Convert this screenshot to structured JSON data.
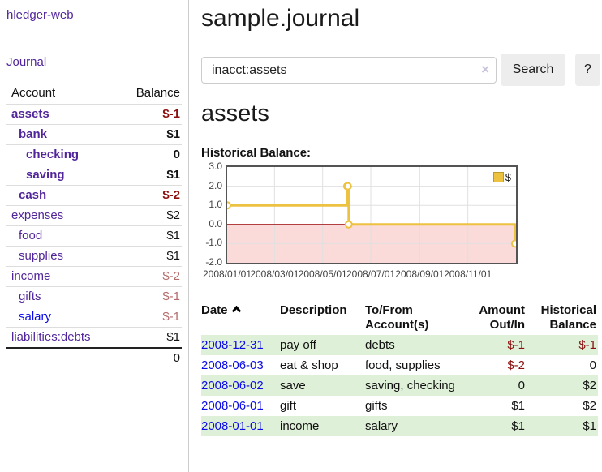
{
  "sidebar": {
    "brand": "hledger-web",
    "journal_link": "Journal",
    "accounts_table": {
      "account_header": "Account",
      "balance_header": "Balance",
      "rows": [
        {
          "name": "assets",
          "balance": "$-1",
          "level": 1,
          "bold": true,
          "balance_class": "neg",
          "link_class": ""
        },
        {
          "name": "bank",
          "balance": "$1",
          "level": 2,
          "bold": true,
          "balance_class": "pos",
          "link_class": ""
        },
        {
          "name": "checking",
          "balance": "0",
          "level": 3,
          "bold": true,
          "balance_class": "pos",
          "link_class": ""
        },
        {
          "name": "saving",
          "balance": "$1",
          "level": 3,
          "bold": true,
          "balance_class": "pos",
          "link_class": ""
        },
        {
          "name": "cash",
          "balance": "$-2",
          "level": 2,
          "bold": true,
          "balance_class": "neg",
          "link_class": ""
        },
        {
          "name": "expenses",
          "balance": "$2",
          "level": 1,
          "bold": false,
          "balance_class": "pos",
          "link_class": ""
        },
        {
          "name": "food",
          "balance": "$1",
          "level": 2,
          "bold": false,
          "balance_class": "pos",
          "link_class": ""
        },
        {
          "name": "supplies",
          "balance": "$1",
          "level": 2,
          "bold": false,
          "balance_class": "pos",
          "link_class": ""
        },
        {
          "name": "income",
          "balance": "$-2",
          "level": 1,
          "bold": false,
          "balance_class": "negmuted",
          "link_class": ""
        },
        {
          "name": "gifts",
          "balance": "$-1",
          "level": 2,
          "bold": false,
          "balance_class": "negmuted",
          "link_class": ""
        },
        {
          "name": "salary",
          "balance": "$-1",
          "level": 2,
          "bold": false,
          "balance_class": "negmuted",
          "link_class": "blue"
        },
        {
          "name": "liabilities:debts",
          "balance": "$1",
          "level": 1,
          "bold": false,
          "balance_class": "pos",
          "link_class": ""
        }
      ],
      "total": "0"
    }
  },
  "main": {
    "title": "sample.journal",
    "search": {
      "value": "inacct:assets",
      "clear_icon": "×",
      "search_button": "Search",
      "help_button": "?"
    },
    "account_heading": "assets",
    "chart_label": "Historical Balance:",
    "transactions": {
      "headers": {
        "date": "Date",
        "description": "Description",
        "accounts": "To/From Account(s)",
        "amount": "Amount Out/In",
        "balance": "Historical Balance"
      },
      "rows": [
        {
          "date": "2008-12-31",
          "description": "pay off",
          "accounts": "debts",
          "amount": "$-1",
          "amount_class": "neg",
          "balance": "$-1",
          "balance_class": "neg",
          "stripe": true
        },
        {
          "date": "2008-06-03",
          "description": "eat & shop",
          "accounts": "food, supplies",
          "amount": "$-2",
          "amount_class": "neg",
          "balance": "0",
          "balance_class": "pos",
          "stripe": false
        },
        {
          "date": "2008-06-02",
          "description": "save",
          "accounts": "saving, checking",
          "amount": "0",
          "amount_class": "pos",
          "balance": "$2",
          "balance_class": "pos",
          "stripe": true
        },
        {
          "date": "2008-06-01",
          "description": "gift",
          "accounts": "gifts",
          "amount": "$1",
          "amount_class": "pos",
          "balance": "$2",
          "balance_class": "pos",
          "stripe": false
        },
        {
          "date": "2008-01-01",
          "description": "income",
          "accounts": "salary",
          "amount": "$1",
          "amount_class": "pos",
          "balance": "$1",
          "balance_class": "pos",
          "stripe": true
        }
      ]
    }
  },
  "chart_data": {
    "type": "line",
    "style": "step",
    "title": "Historical Balance:",
    "series": [
      {
        "name": "$",
        "color": "#edc240",
        "points": [
          [
            "2008-01-01",
            1
          ],
          [
            "2008-06-01",
            2
          ],
          [
            "2008-06-02",
            2
          ],
          [
            "2008-06-03",
            0
          ],
          [
            "2008-12-31",
            -1
          ]
        ]
      }
    ],
    "x_range": [
      "2008-01-01",
      "2009-01-01"
    ],
    "ylim": [
      -2,
      3
    ],
    "y_ticks": [
      {
        "label": "3.0",
        "value": 3
      },
      {
        "label": "2.0",
        "value": 2
      },
      {
        "label": "1.0",
        "value": 1
      },
      {
        "label": "0.0",
        "value": 0
      },
      {
        "label": "-1.0",
        "value": -1
      },
      {
        "label": "-2.0",
        "value": -2
      }
    ],
    "x_ticks": [
      {
        "label": "2008/01/01",
        "date": "2008-01-01"
      },
      {
        "label": "2008/03/01",
        "date": "2008-03-01"
      },
      {
        "label": "2008/05/01",
        "date": "2008-05-01"
      },
      {
        "label": "2008/07/01",
        "date": "2008-07-01"
      },
      {
        "label": "2008/09/01",
        "date": "2008-09-01"
      },
      {
        "label": "2008/11/01",
        "date": "2008-11-01"
      }
    ],
    "grid": true,
    "grid_color": "#e0e0e0",
    "zero_line_color": "#990000",
    "negative_region_color": "#fbdada",
    "legend_position": "top-right"
  },
  "colors": {
    "accent_purple": "#52269b",
    "link_blue": "#0b0be8",
    "negative_red": "#8b0f0f",
    "negative_muted": "#b36b6b",
    "stripe_green": "#dff0d8",
    "chart_gold": "#edc240",
    "chart_border": "#545454"
  }
}
